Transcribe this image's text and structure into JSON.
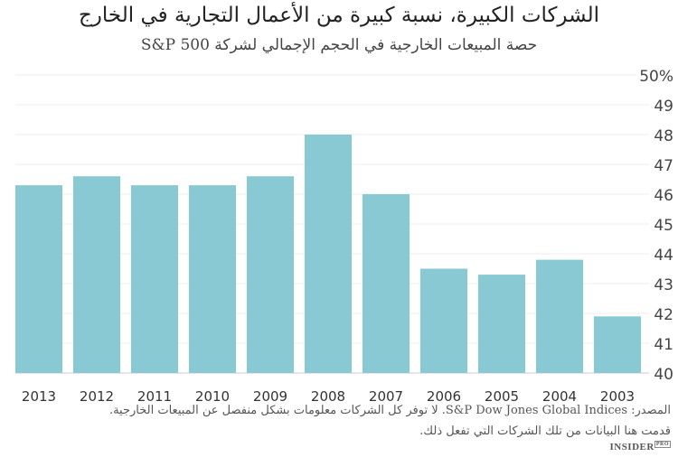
{
  "title": "الشركات الكبيرة، نسبة كبيرة من الأعمال التجارية في الخارج",
  "subtitle": "حصة المبيعات الخارجية في الحجم الإجمالي لشركة S&P 500",
  "source_line1": "المصدر: S&P Dow Jones Global Indices. لا توفر كل الشركات معلومات بشكل منفصل عن المبيعات الخارجية.",
  "source_line2": "قدمت هنا البيانات من تلك الشركات التي تفعل ذلك.",
  "logo": {
    "text": "INSIDER",
    "badge": "PRO"
  },
  "chart_data": {
    "type": "bar",
    "categories": [
      "2013",
      "2012",
      "2011",
      "2010",
      "2009",
      "2008",
      "2007",
      "2006",
      "2005",
      "2004",
      "2003"
    ],
    "values": [
      46.3,
      46.6,
      46.3,
      46.3,
      46.6,
      48.0,
      46.0,
      43.5,
      43.3,
      43.8,
      41.9
    ],
    "ylim": [
      40,
      50
    ],
    "yticks": [
      "40",
      "41",
      "42",
      "43",
      "44",
      "45",
      "46",
      "47",
      "48",
      "49",
      "50%"
    ],
    "grid": true,
    "bar_color": "#88c9d3",
    "axis_side": "right"
  }
}
